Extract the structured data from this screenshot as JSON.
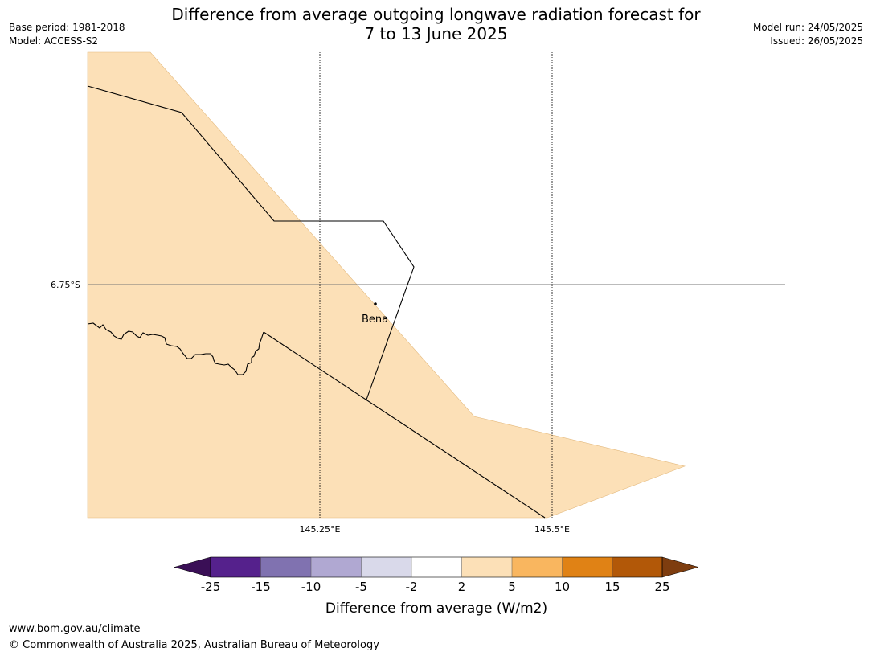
{
  "title_line1": "Difference from average outgoing longwave radiation forecast for",
  "title_line2": "7 to 13 June 2025",
  "base_period": "Base period: 1981-2018",
  "model": "Model: ACCESS-S2",
  "model_run": "Model run: 24/05/2025",
  "issued": "Issued: 26/05/2025",
  "map": {
    "lat_label": "6.75°S",
    "lon_labels": [
      "145.25°E",
      "145.5°E"
    ],
    "place_name": "Bena",
    "shaded_category": "2 to 5",
    "shading_color": "#fce0b7"
  },
  "legend": {
    "title": "Difference from average (W/m2)",
    "ticks": [
      "-25",
      "-15",
      "-10",
      "-5",
      "-2",
      "2",
      "5",
      "10",
      "15",
      "25"
    ],
    "colors": [
      "#3a0f56",
      "#55218c",
      "#8072b0",
      "#b0a8d2",
      "#d9d9ea",
      "#ffffff",
      "#fce0b7",
      "#f9b65f",
      "#e08215",
      "#b25808",
      "#7e3d0f"
    ]
  },
  "footer_url": "www.bom.gov.au/climate",
  "footer_copyright": "© Commonwealth of Australia 2025, Australian Bureau of Meteorology"
}
